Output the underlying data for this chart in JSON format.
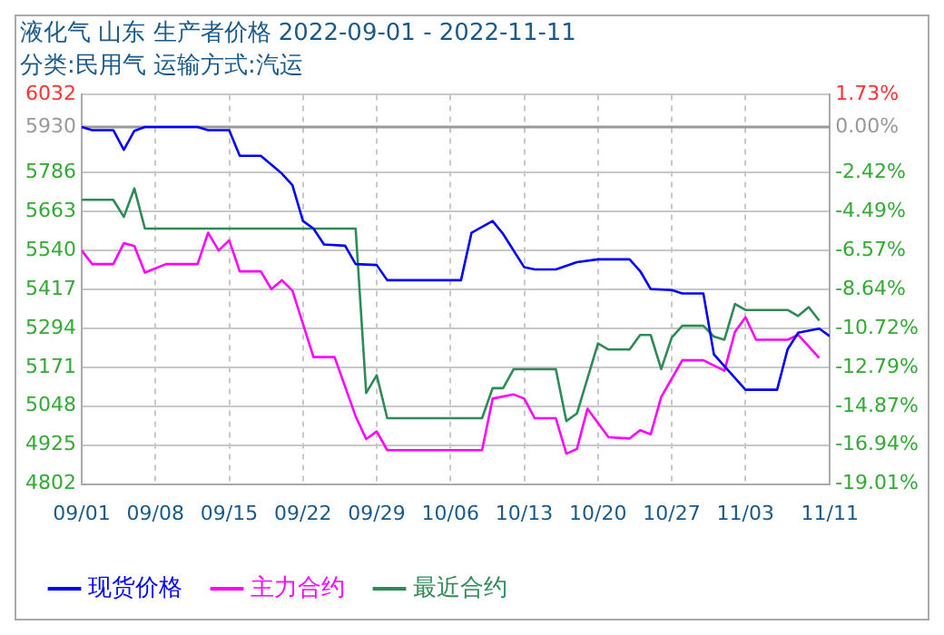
{
  "chart_data": {
    "type": "line",
    "title": "液化气 山东 生产者价格 2022-09-01 - 2022-11-11",
    "subtitle": "分类:民用气 运输方式:汽运",
    "xlim": [
      "2022-09-01",
      "2022-11-11"
    ],
    "xticks": [
      {
        "value": "2022-09-01",
        "label": "09/01"
      },
      {
        "value": "2022-09-08",
        "label": "09/08"
      },
      {
        "value": "2022-09-15",
        "label": "09/15"
      },
      {
        "value": "2022-09-22",
        "label": "09/22"
      },
      {
        "value": "2022-09-29",
        "label": "09/29"
      },
      {
        "value": "2022-10-06",
        "label": "10/06"
      },
      {
        "value": "2022-10-13",
        "label": "10/13"
      },
      {
        "value": "2022-10-20",
        "label": "10/20"
      },
      {
        "value": "2022-10-27",
        "label": "10/27"
      },
      {
        "value": "2022-11-03",
        "label": "11/03"
      },
      {
        "value": "2022-11-11",
        "label": "11/11"
      }
    ],
    "ylim": [
      4802,
      6032
    ],
    "yticks": [
      4802,
      4925,
      5048,
      5171,
      5294,
      5417,
      5540,
      5663,
      5786,
      5930,
      6032
    ],
    "y2lim": [
      -19.01,
      1.73
    ],
    "y2ticks": [
      {
        "value": -19.01,
        "label": "-19.01%"
      },
      {
        "value": -16.94,
        "label": "-16.94%"
      },
      {
        "value": -14.87,
        "label": "-14.87%"
      },
      {
        "value": -12.79,
        "label": "-12.79%"
      },
      {
        "value": -10.72,
        "label": "-10.72%"
      },
      {
        "value": -8.64,
        "label": "-8.64%"
      },
      {
        "value": -6.57,
        "label": "-6.57%"
      },
      {
        "value": -4.49,
        "label": "-4.49%"
      },
      {
        "value": -2.42,
        "label": "-2.42%"
      },
      {
        "value": 0,
        "label": "0.00%"
      },
      {
        "value": 1.73,
        "label": "1.73%"
      }
    ],
    "grid": true,
    "legend": "bottom",
    "marker": "none",
    "line_style": "solid",
    "ref_lines": [
      {
        "axis": "y",
        "value": 5930,
        "color": "#999999"
      }
    ],
    "series": [
      {
        "name": "现货价格",
        "color": "#0000ff",
        "x": [
          "2022-09-01",
          "2022-09-02",
          "2022-09-04",
          "2022-09-05",
          "2022-09-06",
          "2022-09-07",
          "2022-09-12",
          "2022-09-13",
          "2022-09-15",
          "2022-09-16",
          "2022-09-18",
          "2022-09-20",
          "2022-09-21",
          "2022-09-22",
          "2022-09-23",
          "2022-09-24",
          "2022-09-26",
          "2022-09-27",
          "2022-09-29",
          "2022-09-30",
          "2022-10-07",
          "2022-10-08",
          "2022-10-10",
          "2022-10-11",
          "2022-10-13",
          "2022-10-14",
          "2022-10-16",
          "2022-10-18",
          "2022-10-20",
          "2022-10-23",
          "2022-10-24",
          "2022-10-25",
          "2022-10-27",
          "2022-10-28",
          "2022-10-30",
          "2022-10-31",
          "2022-11-03",
          "2022-11-06",
          "2022-11-07",
          "2022-11-08",
          "2022-11-10",
          "2022-11-11"
        ],
        "values": [
          5930,
          5920,
          5920,
          5858,
          5918,
          5930,
          5930,
          5920,
          5920,
          5839,
          5839,
          5783,
          5746,
          5633,
          5609,
          5559,
          5555,
          5497,
          5494,
          5446,
          5446,
          5596,
          5633,
          5592,
          5487,
          5480,
          5480,
          5503,
          5512,
          5512,
          5475,
          5418,
          5415,
          5404,
          5404,
          5212,
          5100,
          5100,
          5228,
          5280,
          5293,
          5269
        ]
      },
      {
        "name": "主力合约",
        "color": "#ff00ff",
        "x": [
          "2022-09-01",
          "2022-09-02",
          "2022-09-04",
          "2022-09-05",
          "2022-09-06",
          "2022-09-07",
          "2022-09-09",
          "2022-09-12",
          "2022-09-13",
          "2022-09-14",
          "2022-09-15",
          "2022-09-16",
          "2022-09-18",
          "2022-09-19",
          "2022-09-20",
          "2022-09-21",
          "2022-09-23",
          "2022-09-25",
          "2022-09-27",
          "2022-09-28",
          "2022-09-29",
          "2022-09-30",
          "2022-10-09",
          "2022-10-10",
          "2022-10-12",
          "2022-10-13",
          "2022-10-14",
          "2022-10-16",
          "2022-10-17",
          "2022-10-18",
          "2022-10-19",
          "2022-10-21",
          "2022-10-23",
          "2022-10-24",
          "2022-10-25",
          "2022-10-26",
          "2022-10-28",
          "2022-10-30",
          "2022-11-01",
          "2022-11-02",
          "2022-11-03",
          "2022-11-04",
          "2022-11-07",
          "2022-11-08",
          "2022-11-10"
        ],
        "values": [
          5540,
          5497,
          5497,
          5563,
          5554,
          5470,
          5497,
          5497,
          5596,
          5540,
          5572,
          5474,
          5474,
          5418,
          5446,
          5413,
          5203,
          5203,
          5016,
          4944,
          4968,
          4909,
          4909,
          5072,
          5085,
          5072,
          5010,
          5010,
          4898,
          4913,
          5040,
          4950,
          4946,
          4972,
          4959,
          5077,
          5193,
          5193,
          5160,
          5283,
          5329,
          5258,
          5258,
          5273,
          5200
        ]
      },
      {
        "name": "最近合约",
        "color": "#2e8b57",
        "x": [
          "2022-09-01",
          "2022-09-04",
          "2022-09-05",
          "2022-09-06",
          "2022-09-07",
          "2022-09-27",
          "2022-09-28",
          "2022-09-29",
          "2022-09-30",
          "2022-10-09",
          "2022-10-10",
          "2022-10-11",
          "2022-10-12",
          "2022-10-16",
          "2022-10-17",
          "2022-10-18",
          "2022-10-20",
          "2022-10-21",
          "2022-10-23",
          "2022-10-24",
          "2022-10-25",
          "2022-10-26",
          "2022-10-27",
          "2022-10-28",
          "2022-10-30",
          "2022-10-31",
          "2022-11-01",
          "2022-11-02",
          "2022-11-03",
          "2022-11-07",
          "2022-11-08",
          "2022-11-09",
          "2022-11-10"
        ],
        "values": [
          5700,
          5700,
          5646,
          5736,
          5609,
          5609,
          5090,
          5146,
          5010,
          5010,
          5105,
          5105,
          5165,
          5165,
          5001,
          5025,
          5246,
          5227,
          5227,
          5273,
          5273,
          5165,
          5265,
          5302,
          5302,
          5268,
          5258,
          5371,
          5352,
          5352,
          5333,
          5361,
          5318
        ]
      }
    ]
  }
}
